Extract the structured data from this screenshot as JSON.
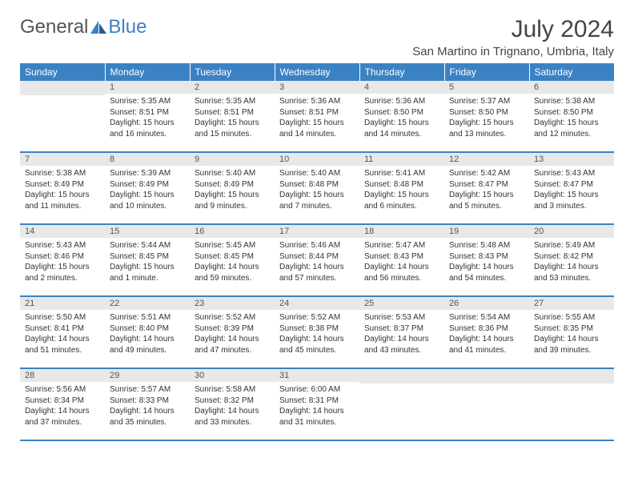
{
  "brand": {
    "part1": "General",
    "part2": "Blue"
  },
  "title": "July 2024",
  "location": "San Martino in Trignano, Umbria, Italy",
  "colors": {
    "accent": "#3b82c4",
    "daynum_bg": "#e8e8e8"
  },
  "weekdays": [
    "Sunday",
    "Monday",
    "Tuesday",
    "Wednesday",
    "Thursday",
    "Friday",
    "Saturday"
  ],
  "weeks": [
    [
      {
        "num": "",
        "sunrise": "",
        "sunset": "",
        "daylight": ""
      },
      {
        "num": "1",
        "sunrise": "Sunrise: 5:35 AM",
        "sunset": "Sunset: 8:51 PM",
        "daylight": "Daylight: 15 hours and 16 minutes."
      },
      {
        "num": "2",
        "sunrise": "Sunrise: 5:35 AM",
        "sunset": "Sunset: 8:51 PM",
        "daylight": "Daylight: 15 hours and 15 minutes."
      },
      {
        "num": "3",
        "sunrise": "Sunrise: 5:36 AM",
        "sunset": "Sunset: 8:51 PM",
        "daylight": "Daylight: 15 hours and 14 minutes."
      },
      {
        "num": "4",
        "sunrise": "Sunrise: 5:36 AM",
        "sunset": "Sunset: 8:50 PM",
        "daylight": "Daylight: 15 hours and 14 minutes."
      },
      {
        "num": "5",
        "sunrise": "Sunrise: 5:37 AM",
        "sunset": "Sunset: 8:50 PM",
        "daylight": "Daylight: 15 hours and 13 minutes."
      },
      {
        "num": "6",
        "sunrise": "Sunrise: 5:38 AM",
        "sunset": "Sunset: 8:50 PM",
        "daylight": "Daylight: 15 hours and 12 minutes."
      }
    ],
    [
      {
        "num": "7",
        "sunrise": "Sunrise: 5:38 AM",
        "sunset": "Sunset: 8:49 PM",
        "daylight": "Daylight: 15 hours and 11 minutes."
      },
      {
        "num": "8",
        "sunrise": "Sunrise: 5:39 AM",
        "sunset": "Sunset: 8:49 PM",
        "daylight": "Daylight: 15 hours and 10 minutes."
      },
      {
        "num": "9",
        "sunrise": "Sunrise: 5:40 AM",
        "sunset": "Sunset: 8:49 PM",
        "daylight": "Daylight: 15 hours and 9 minutes."
      },
      {
        "num": "10",
        "sunrise": "Sunrise: 5:40 AM",
        "sunset": "Sunset: 8:48 PM",
        "daylight": "Daylight: 15 hours and 7 minutes."
      },
      {
        "num": "11",
        "sunrise": "Sunrise: 5:41 AM",
        "sunset": "Sunset: 8:48 PM",
        "daylight": "Daylight: 15 hours and 6 minutes."
      },
      {
        "num": "12",
        "sunrise": "Sunrise: 5:42 AM",
        "sunset": "Sunset: 8:47 PM",
        "daylight": "Daylight: 15 hours and 5 minutes."
      },
      {
        "num": "13",
        "sunrise": "Sunrise: 5:43 AM",
        "sunset": "Sunset: 8:47 PM",
        "daylight": "Daylight: 15 hours and 3 minutes."
      }
    ],
    [
      {
        "num": "14",
        "sunrise": "Sunrise: 5:43 AM",
        "sunset": "Sunset: 8:46 PM",
        "daylight": "Daylight: 15 hours and 2 minutes."
      },
      {
        "num": "15",
        "sunrise": "Sunrise: 5:44 AM",
        "sunset": "Sunset: 8:45 PM",
        "daylight": "Daylight: 15 hours and 1 minute."
      },
      {
        "num": "16",
        "sunrise": "Sunrise: 5:45 AM",
        "sunset": "Sunset: 8:45 PM",
        "daylight": "Daylight: 14 hours and 59 minutes."
      },
      {
        "num": "17",
        "sunrise": "Sunrise: 5:46 AM",
        "sunset": "Sunset: 8:44 PM",
        "daylight": "Daylight: 14 hours and 57 minutes."
      },
      {
        "num": "18",
        "sunrise": "Sunrise: 5:47 AM",
        "sunset": "Sunset: 8:43 PM",
        "daylight": "Daylight: 14 hours and 56 minutes."
      },
      {
        "num": "19",
        "sunrise": "Sunrise: 5:48 AM",
        "sunset": "Sunset: 8:43 PM",
        "daylight": "Daylight: 14 hours and 54 minutes."
      },
      {
        "num": "20",
        "sunrise": "Sunrise: 5:49 AM",
        "sunset": "Sunset: 8:42 PM",
        "daylight": "Daylight: 14 hours and 53 minutes."
      }
    ],
    [
      {
        "num": "21",
        "sunrise": "Sunrise: 5:50 AM",
        "sunset": "Sunset: 8:41 PM",
        "daylight": "Daylight: 14 hours and 51 minutes."
      },
      {
        "num": "22",
        "sunrise": "Sunrise: 5:51 AM",
        "sunset": "Sunset: 8:40 PM",
        "daylight": "Daylight: 14 hours and 49 minutes."
      },
      {
        "num": "23",
        "sunrise": "Sunrise: 5:52 AM",
        "sunset": "Sunset: 8:39 PM",
        "daylight": "Daylight: 14 hours and 47 minutes."
      },
      {
        "num": "24",
        "sunrise": "Sunrise: 5:52 AM",
        "sunset": "Sunset: 8:38 PM",
        "daylight": "Daylight: 14 hours and 45 minutes."
      },
      {
        "num": "25",
        "sunrise": "Sunrise: 5:53 AM",
        "sunset": "Sunset: 8:37 PM",
        "daylight": "Daylight: 14 hours and 43 minutes."
      },
      {
        "num": "26",
        "sunrise": "Sunrise: 5:54 AM",
        "sunset": "Sunset: 8:36 PM",
        "daylight": "Daylight: 14 hours and 41 minutes."
      },
      {
        "num": "27",
        "sunrise": "Sunrise: 5:55 AM",
        "sunset": "Sunset: 8:35 PM",
        "daylight": "Daylight: 14 hours and 39 minutes."
      }
    ],
    [
      {
        "num": "28",
        "sunrise": "Sunrise: 5:56 AM",
        "sunset": "Sunset: 8:34 PM",
        "daylight": "Daylight: 14 hours and 37 minutes."
      },
      {
        "num": "29",
        "sunrise": "Sunrise: 5:57 AM",
        "sunset": "Sunset: 8:33 PM",
        "daylight": "Daylight: 14 hours and 35 minutes."
      },
      {
        "num": "30",
        "sunrise": "Sunrise: 5:58 AM",
        "sunset": "Sunset: 8:32 PM",
        "daylight": "Daylight: 14 hours and 33 minutes."
      },
      {
        "num": "31",
        "sunrise": "Sunrise: 6:00 AM",
        "sunset": "Sunset: 8:31 PM",
        "daylight": "Daylight: 14 hours and 31 minutes."
      },
      {
        "num": "",
        "sunrise": "",
        "sunset": "",
        "daylight": ""
      },
      {
        "num": "",
        "sunrise": "",
        "sunset": "",
        "daylight": ""
      },
      {
        "num": "",
        "sunrise": "",
        "sunset": "",
        "daylight": ""
      }
    ]
  ]
}
